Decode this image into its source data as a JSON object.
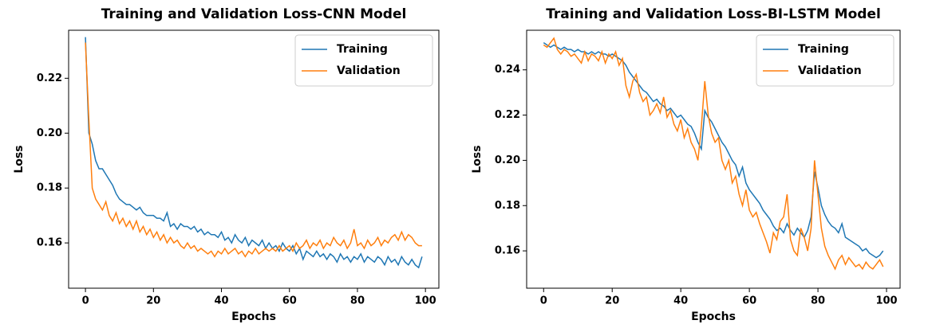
{
  "chart_data": [
    {
      "type": "line",
      "title": "Training and Validation Loss-CNN Model",
      "x_label": "Epochs",
      "y_label": "Loss",
      "x": [
        0,
        1,
        2,
        3,
        4,
        5,
        6,
        7,
        8,
        9,
        10,
        11,
        12,
        13,
        14,
        15,
        16,
        17,
        18,
        19,
        20,
        21,
        22,
        23,
        24,
        25,
        26,
        27,
        28,
        29,
        30,
        31,
        32,
        33,
        34,
        35,
        36,
        37,
        38,
        39,
        40,
        41,
        42,
        43,
        44,
        45,
        46,
        47,
        48,
        49,
        50,
        51,
        52,
        53,
        54,
        55,
        56,
        57,
        58,
        59,
        60,
        61,
        62,
        63,
        64,
        65,
        66,
        67,
        68,
        69,
        70,
        71,
        72,
        73,
        74,
        75,
        76,
        77,
        78,
        79,
        80,
        81,
        82,
        83,
        84,
        85,
        86,
        87,
        88,
        89,
        90,
        91,
        92,
        93,
        94,
        95,
        96,
        97,
        98,
        99
      ],
      "series": [
        {
          "name": "Training",
          "color": "#1f77b4",
          "values": [
            0.235,
            0.2,
            0.196,
            0.19,
            0.187,
            0.187,
            0.185,
            0.183,
            0.181,
            0.178,
            0.176,
            0.175,
            0.174,
            0.174,
            0.173,
            0.172,
            0.173,
            0.171,
            0.17,
            0.17,
            0.17,
            0.169,
            0.169,
            0.168,
            0.171,
            0.166,
            0.167,
            0.165,
            0.167,
            0.166,
            0.166,
            0.165,
            0.166,
            0.164,
            0.165,
            0.163,
            0.164,
            0.163,
            0.163,
            0.162,
            0.164,
            0.161,
            0.162,
            0.16,
            0.163,
            0.161,
            0.16,
            0.162,
            0.159,
            0.161,
            0.16,
            0.159,
            0.161,
            0.158,
            0.16,
            0.158,
            0.159,
            0.157,
            0.16,
            0.158,
            0.157,
            0.159,
            0.156,
            0.158,
            0.154,
            0.157,
            0.156,
            0.155,
            0.157,
            0.155,
            0.156,
            0.154,
            0.156,
            0.155,
            0.153,
            0.156,
            0.154,
            0.155,
            0.153,
            0.155,
            0.154,
            0.156,
            0.153,
            0.155,
            0.154,
            0.153,
            0.155,
            0.154,
            0.152,
            0.155,
            0.153,
            0.154,
            0.152,
            0.155,
            0.153,
            0.152,
            0.154,
            0.152,
            0.151,
            0.155
          ]
        },
        {
          "name": "Validation",
          "color": "#ff7f0e",
          "values": [
            0.233,
            0.205,
            0.18,
            0.176,
            0.174,
            0.172,
            0.175,
            0.17,
            0.168,
            0.171,
            0.167,
            0.169,
            0.166,
            0.168,
            0.165,
            0.168,
            0.164,
            0.166,
            0.163,
            0.165,
            0.162,
            0.164,
            0.161,
            0.163,
            0.16,
            0.162,
            0.16,
            0.161,
            0.159,
            0.158,
            0.16,
            0.158,
            0.159,
            0.157,
            0.158,
            0.157,
            0.156,
            0.157,
            0.155,
            0.157,
            0.156,
            0.158,
            0.156,
            0.157,
            0.158,
            0.156,
            0.157,
            0.155,
            0.157,
            0.156,
            0.158,
            0.156,
            0.157,
            0.158,
            0.157,
            0.158,
            0.157,
            0.159,
            0.157,
            0.158,
            0.159,
            0.157,
            0.16,
            0.158,
            0.159,
            0.161,
            0.158,
            0.16,
            0.159,
            0.161,
            0.158,
            0.16,
            0.159,
            0.162,
            0.16,
            0.159,
            0.161,
            0.158,
            0.16,
            0.165,
            0.159,
            0.16,
            0.158,
            0.161,
            0.159,
            0.16,
            0.162,
            0.159,
            0.161,
            0.16,
            0.162,
            0.163,
            0.161,
            0.164,
            0.161,
            0.163,
            0.162,
            0.16,
            0.159,
            0.159
          ]
        }
      ],
      "xlim": [
        -4.95,
        103.95
      ],
      "xticks": [
        0,
        20,
        40,
        60,
        80,
        100
      ],
      "ylim": [
        0.1435,
        0.2375
      ],
      "yticks": [
        0.16,
        0.18,
        {
          "value": 0.2,
          "label": "0.20"
        },
        0.22
      ],
      "legend": "upper right"
    },
    {
      "type": "line",
      "title": "Training and Validation Loss-BI-LSTM Model",
      "x_label": "Epochs",
      "y_label": "Loss",
      "x": [
        0,
        1,
        2,
        3,
        4,
        5,
        6,
        7,
        8,
        9,
        10,
        11,
        12,
        13,
        14,
        15,
        16,
        17,
        18,
        19,
        20,
        21,
        22,
        23,
        24,
        25,
        26,
        27,
        28,
        29,
        30,
        31,
        32,
        33,
        34,
        35,
        36,
        37,
        38,
        39,
        40,
        41,
        42,
        43,
        44,
        45,
        46,
        47,
        48,
        49,
        50,
        51,
        52,
        53,
        54,
        55,
        56,
        57,
        58,
        59,
        60,
        61,
        62,
        63,
        64,
        65,
        66,
        67,
        68,
        69,
        70,
        71,
        72,
        73,
        74,
        75,
        76,
        77,
        78,
        79,
        80,
        81,
        82,
        83,
        84,
        85,
        86,
        87,
        88,
        89,
        90,
        91,
        92,
        93,
        94,
        95,
        96,
        97,
        98,
        99
      ],
      "series": [
        {
          "name": "Training",
          "color": "#1f77b4",
          "values": [
            0.252,
            0.251,
            0.25,
            0.251,
            0.25,
            0.249,
            0.25,
            0.249,
            0.249,
            0.248,
            0.249,
            0.248,
            0.248,
            0.247,
            0.248,
            0.247,
            0.248,
            0.247,
            0.247,
            0.246,
            0.247,
            0.246,
            0.245,
            0.244,
            0.242,
            0.239,
            0.237,
            0.235,
            0.233,
            0.231,
            0.23,
            0.228,
            0.226,
            0.227,
            0.225,
            0.224,
            0.222,
            0.223,
            0.221,
            0.219,
            0.22,
            0.218,
            0.216,
            0.215,
            0.212,
            0.208,
            0.205,
            0.222,
            0.219,
            0.217,
            0.214,
            0.211,
            0.208,
            0.206,
            0.203,
            0.2,
            0.198,
            0.193,
            0.197,
            0.19,
            0.187,
            0.185,
            0.183,
            0.181,
            0.178,
            0.176,
            0.174,
            0.171,
            0.169,
            0.17,
            0.168,
            0.172,
            0.169,
            0.167,
            0.17,
            0.168,
            0.166,
            0.169,
            0.175,
            0.195,
            0.188,
            0.18,
            0.176,
            0.173,
            0.171,
            0.17,
            0.168,
            0.172,
            0.166,
            0.165,
            0.164,
            0.163,
            0.162,
            0.16,
            0.161,
            0.159,
            0.158,
            0.157,
            0.158,
            0.16
          ]
        },
        {
          "name": "Validation",
          "color": "#ff7f0e",
          "values": [
            0.251,
            0.25,
            0.252,
            0.254,
            0.249,
            0.247,
            0.249,
            0.248,
            0.246,
            0.247,
            0.245,
            0.243,
            0.248,
            0.244,
            0.247,
            0.246,
            0.244,
            0.248,
            0.243,
            0.247,
            0.245,
            0.248,
            0.242,
            0.245,
            0.233,
            0.228,
            0.235,
            0.238,
            0.23,
            0.226,
            0.228,
            0.22,
            0.222,
            0.225,
            0.221,
            0.228,
            0.219,
            0.222,
            0.216,
            0.213,
            0.218,
            0.21,
            0.214,
            0.208,
            0.205,
            0.2,
            0.215,
            0.235,
            0.22,
            0.212,
            0.208,
            0.21,
            0.2,
            0.196,
            0.2,
            0.19,
            0.193,
            0.185,
            0.18,
            0.187,
            0.178,
            0.175,
            0.177,
            0.172,
            0.168,
            0.164,
            0.159,
            0.168,
            0.165,
            0.173,
            0.175,
            0.185,
            0.165,
            0.16,
            0.158,
            0.17,
            0.166,
            0.16,
            0.17,
            0.2,
            0.185,
            0.17,
            0.162,
            0.158,
            0.155,
            0.152,
            0.156,
            0.158,
            0.154,
            0.157,
            0.155,
            0.153,
            0.154,
            0.152,
            0.155,
            0.153,
            0.152,
            0.154,
            0.156,
            0.153
          ]
        }
      ],
      "xlim": [
        -4.95,
        103.95
      ],
      "xticks": [
        0,
        20,
        40,
        60,
        80,
        100
      ],
      "ylim": [
        0.1435,
        0.2575
      ],
      "yticks": [
        0.16,
        0.18,
        {
          "value": 0.2,
          "label": "0.20"
        },
        0.22,
        0.24
      ],
      "legend": "upper right"
    }
  ]
}
